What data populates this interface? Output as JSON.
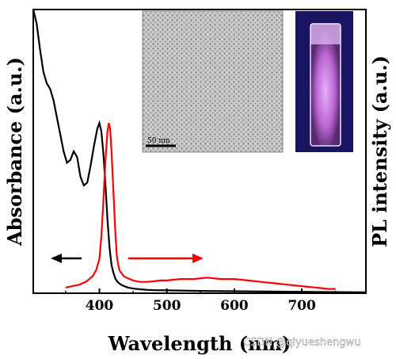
{
  "chart_data": {
    "type": "line",
    "title": "",
    "xlabel": "Wavelength (nm)",
    "ylabel_left": "Absorbance (a.u.)",
    "ylabel_right": "PL intensity (a.u.)",
    "xlim": [
      302,
      795
    ],
    "ylim": [
      0,
      1
    ],
    "xticks": [
      400,
      500,
      600,
      700
    ],
    "grid": false,
    "legend": "none",
    "series": [
      {
        "axis": "left",
        "color": "#000000",
        "x": [
          302,
          307,
          312,
          317,
          322,
          327,
          332,
          337,
          342,
          347,
          352,
          357,
          362,
          367,
          372,
          377,
          382,
          387,
          392,
          397,
          400,
          403,
          406,
          409,
          412,
          415,
          418,
          421,
          424,
          427,
          432,
          437,
          442,
          447,
          452,
          460,
          470,
          480,
          500,
          550,
          600,
          650,
          700,
          750,
          795
        ],
        "y": [
          1.0,
          0.95,
          0.86,
          0.78,
          0.74,
          0.72,
          0.68,
          0.62,
          0.56,
          0.5,
          0.46,
          0.47,
          0.5,
          0.48,
          0.41,
          0.38,
          0.39,
          0.45,
          0.52,
          0.58,
          0.6,
          0.57,
          0.49,
          0.38,
          0.26,
          0.16,
          0.1,
          0.07,
          0.05,
          0.04,
          0.03,
          0.025,
          0.02,
          0.018,
          0.016,
          0.014,
          0.012,
          0.011,
          0.01,
          0.008,
          0.007,
          0.006,
          0.005,
          0.004,
          0.003
        ]
      },
      {
        "axis": "right",
        "color": "#ff0000",
        "x": [
          350,
          360,
          370,
          380,
          390,
          395,
          400,
          403,
          406,
          409,
          412,
          414,
          416,
          418,
          420,
          422,
          424,
          426,
          428,
          430,
          433,
          436,
          440,
          445,
          450,
          460,
          470,
          480,
          490,
          500,
          520,
          540,
          560,
          580,
          600,
          620,
          640,
          660,
          680,
          700,
          720,
          740,
          750
        ],
        "y": [
          0.02,
          0.025,
          0.03,
          0.04,
          0.06,
          0.08,
          0.12,
          0.2,
          0.33,
          0.47,
          0.57,
          0.6,
          0.58,
          0.5,
          0.4,
          0.3,
          0.2,
          0.13,
          0.1,
          0.08,
          0.07,
          0.06,
          0.055,
          0.05,
          0.045,
          0.04,
          0.04,
          0.042,
          0.045,
          0.045,
          0.05,
          0.05,
          0.055,
          0.05,
          0.05,
          0.045,
          0.04,
          0.035,
          0.03,
          0.025,
          0.02,
          0.015,
          0.015
        ]
      }
    ]
  },
  "inset_tem": {
    "scalebar_label": "50 nm"
  },
  "watermark": "CSDN @qiyueshengwu"
}
